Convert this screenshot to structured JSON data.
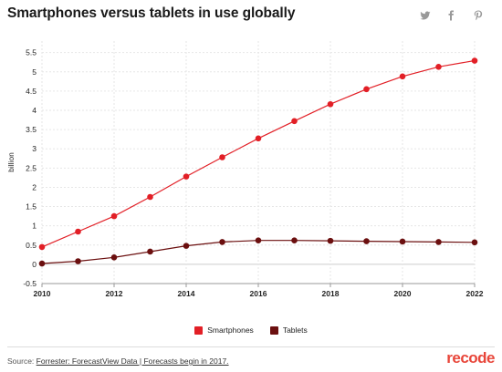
{
  "header": {
    "title": "Smartphones versus tablets in use globally"
  },
  "share_icons": [
    "twitter-icon",
    "facebook-icon",
    "pinterest-icon"
  ],
  "chart_data": {
    "type": "line",
    "title": "Smartphones versus tablets in use globally",
    "xlabel": "",
    "ylabel": "billion",
    "x": [
      2010,
      2011,
      2012,
      2013,
      2014,
      2015,
      2016,
      2017,
      2018,
      2019,
      2020,
      2021,
      2022
    ],
    "x_ticks": [
      "2010",
      "2012",
      "2014",
      "2016",
      "2018",
      "2020",
      "2022"
    ],
    "y_ticks": [
      "-0.5",
      "0",
      "0.5",
      "1",
      "1.5",
      "2",
      "2.5",
      "3",
      "3.5",
      "4",
      "4.5",
      "5",
      "5.5"
    ],
    "xlim": [
      2010,
      2022
    ],
    "ylim": [
      -0.5,
      5.8
    ],
    "grid": true,
    "legend_position": "bottom",
    "series": [
      {
        "name": "Smartphones",
        "color": "#e21f26",
        "values": [
          0.45,
          0.85,
          1.25,
          1.75,
          2.28,
          2.78,
          3.27,
          3.72,
          4.16,
          4.55,
          4.88,
          5.13,
          5.29
        ]
      },
      {
        "name": "Tablets",
        "color": "#6b0f0f",
        "values": [
          0.02,
          0.08,
          0.18,
          0.33,
          0.48,
          0.58,
          0.62,
          0.62,
          0.61,
          0.6,
          0.59,
          0.58,
          0.57
        ]
      }
    ]
  },
  "footer": {
    "source_label": "Source:",
    "source_text": "Forrester: ForecastView Data | Forecasts begin in 2017.",
    "brand": "recode",
    "brand_color": "#e8463a"
  }
}
